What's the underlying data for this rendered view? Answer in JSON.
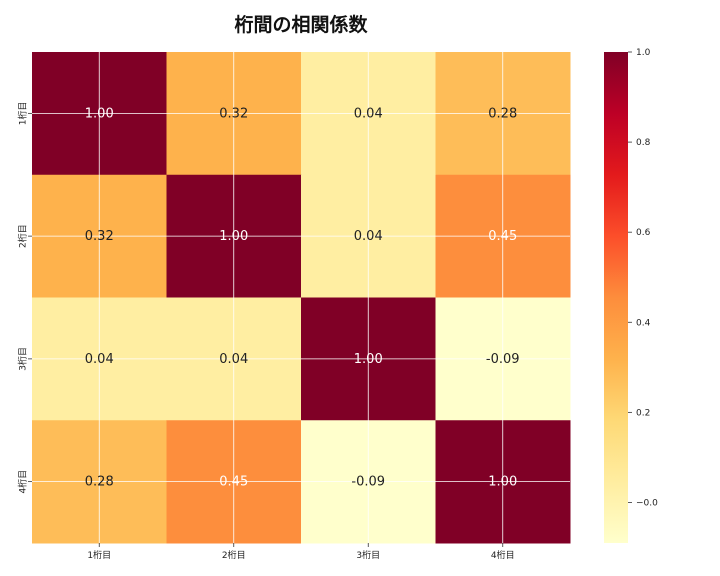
{
  "chart_data": {
    "type": "heatmap",
    "title": "桁間の相関係数",
    "x_categories": [
      "1桁目",
      "2桁目",
      "3桁目",
      "4桁目"
    ],
    "y_categories": [
      "1桁目",
      "2桁目",
      "3桁目",
      "4桁目"
    ],
    "values": [
      [
        1.0,
        0.32,
        0.04,
        0.28
      ],
      [
        0.32,
        1.0,
        0.04,
        0.45
      ],
      [
        0.04,
        0.04,
        1.0,
        -0.09
      ],
      [
        0.28,
        0.45,
        -0.09,
        1.0
      ]
    ],
    "value_format": "0.00",
    "colorbar": {
      "range": [
        -0.09,
        1.0
      ],
      "ticks": [
        -0.0,
        0.2,
        0.4,
        0.6,
        0.8,
        1.0
      ],
      "tick_labels": [
        "−0.0",
        "0.2",
        "0.4",
        "0.6",
        "0.8",
        "1.0"
      ]
    },
    "colormap": "YlOrRd",
    "grid": true
  }
}
